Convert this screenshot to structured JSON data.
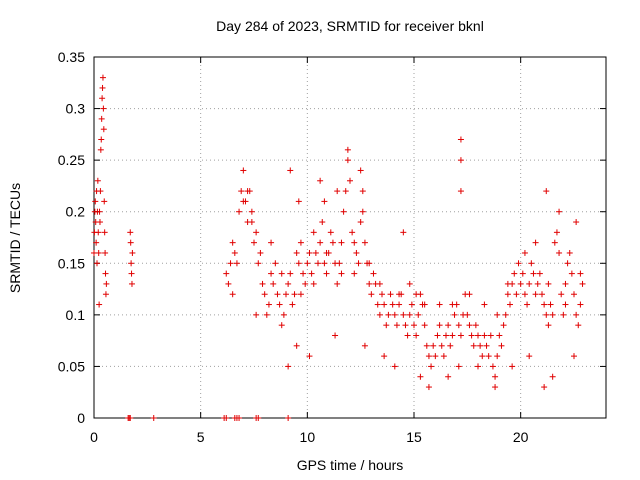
{
  "chart_data": {
    "type": "scatter",
    "title": "Day 284 of 2023, SRMTID for receiver bknl",
    "xlabel": "GPS time / hours",
    "ylabel": "SRMTID / TECUs",
    "xlim": [
      0,
      24
    ],
    "ylim": [
      0,
      0.35
    ],
    "xticks": [
      0,
      5,
      10,
      15,
      20
    ],
    "xtick_labels": [
      "0",
      "5",
      "10",
      "15",
      "20"
    ],
    "yticks": [
      0,
      0.05,
      0.1,
      0.15,
      0.2,
      0.25,
      0.3,
      0.35
    ],
    "ytick_labels": [
      "0",
      "0.05",
      "0.1",
      "0.15",
      "0.2",
      "0.25",
      "0.3",
      "0.35"
    ],
    "grid": true,
    "marker": "plus",
    "color": "#e00000",
    "series": [
      {
        "name": "SRMTID",
        "points": [
          [
            0.0,
            0.16
          ],
          [
            0.02,
            0.18
          ],
          [
            0.04,
            0.2
          ],
          [
            0.06,
            0.21
          ],
          [
            0.08,
            0.19
          ],
          [
            0.1,
            0.17
          ],
          [
            0.12,
            0.22
          ],
          [
            0.14,
            0.15
          ],
          [
            0.16,
            0.2
          ],
          [
            0.18,
            0.23
          ],
          [
            0.2,
            0.18
          ],
          [
            0.22,
            0.16
          ],
          [
            0.24,
            0.11
          ],
          [
            0.26,
            0.2
          ],
          [
            0.28,
            0.19
          ],
          [
            0.3,
            0.22
          ],
          [
            0.32,
            0.26
          ],
          [
            0.34,
            0.27
          ],
          [
            0.36,
            0.29
          ],
          [
            0.38,
            0.31
          ],
          [
            0.4,
            0.32
          ],
          [
            0.42,
            0.33
          ],
          [
            0.44,
            0.3
          ],
          [
            0.46,
            0.28
          ],
          [
            0.48,
            0.21
          ],
          [
            0.5,
            0.18
          ],
          [
            0.52,
            0.16
          ],
          [
            0.54,
            0.14
          ],
          [
            0.56,
            0.12
          ],
          [
            0.58,
            0.13
          ],
          [
            1.7,
            0.18
          ],
          [
            1.72,
            0.17
          ],
          [
            1.74,
            0.15
          ],
          [
            1.76,
            0.14
          ],
          [
            1.78,
            0.13
          ],
          [
            1.8,
            0.16
          ],
          [
            1.6,
            0.0
          ],
          [
            1.65,
            0.0
          ],
          [
            1.7,
            0.0
          ],
          [
            2.8,
            0.0
          ],
          [
            6.1,
            0.0
          ],
          [
            6.2,
            0.0
          ],
          [
            6.6,
            0.0
          ],
          [
            6.7,
            0.0
          ],
          [
            6.8,
            0.0
          ],
          [
            7.6,
            0.0
          ],
          [
            7.7,
            0.0
          ],
          [
            9.1,
            0.0
          ],
          [
            6.2,
            0.14
          ],
          [
            6.3,
            0.13
          ],
          [
            6.4,
            0.15
          ],
          [
            6.5,
            0.17
          ],
          [
            6.6,
            0.16
          ],
          [
            6.7,
            0.15
          ],
          [
            6.8,
            0.2
          ],
          [
            6.9,
            0.22
          ],
          [
            7.0,
            0.24
          ],
          [
            7.1,
            0.21
          ],
          [
            7.2,
            0.19
          ],
          [
            7.3,
            0.22
          ],
          [
            7.4,
            0.2
          ],
          [
            7.5,
            0.17
          ],
          [
            7.6,
            0.18
          ],
          [
            7.7,
            0.15
          ],
          [
            7.8,
            0.16
          ],
          [
            7.9,
            0.13
          ],
          [
            8.0,
            0.12
          ],
          [
            8.1,
            0.1
          ],
          [
            8.2,
            0.11
          ],
          [
            8.3,
            0.14
          ],
          [
            8.4,
            0.13
          ],
          [
            8.5,
            0.15
          ],
          [
            8.6,
            0.12
          ],
          [
            8.7,
            0.11
          ],
          [
            8.8,
            0.09
          ],
          [
            8.9,
            0.1
          ],
          [
            9.0,
            0.12
          ],
          [
            9.1,
            0.13
          ],
          [
            9.2,
            0.14
          ],
          [
            9.3,
            0.11
          ],
          [
            9.4,
            0.12
          ],
          [
            9.5,
            0.16
          ],
          [
            9.6,
            0.15
          ],
          [
            9.7,
            0.17
          ],
          [
            9.8,
            0.14
          ],
          [
            9.9,
            0.13
          ],
          [
            10.0,
            0.15
          ],
          [
            10.1,
            0.16
          ],
          [
            10.2,
            0.14
          ],
          [
            10.3,
            0.18
          ],
          [
            10.4,
            0.16
          ],
          [
            10.5,
            0.15
          ],
          [
            10.6,
            0.17
          ],
          [
            10.7,
            0.19
          ],
          [
            10.8,
            0.15
          ],
          [
            10.9,
            0.14
          ],
          [
            11.0,
            0.16
          ],
          [
            11.1,
            0.18
          ],
          [
            11.2,
            0.17
          ],
          [
            11.3,
            0.15
          ],
          [
            11.4,
            0.13
          ],
          [
            11.5,
            0.15
          ],
          [
            11.6,
            0.17
          ],
          [
            11.7,
            0.2
          ],
          [
            11.8,
            0.22
          ],
          [
            11.9,
            0.25
          ],
          [
            12.0,
            0.23
          ],
          [
            12.1,
            0.18
          ],
          [
            12.2,
            0.17
          ],
          [
            12.3,
            0.16
          ],
          [
            12.4,
            0.15
          ],
          [
            12.5,
            0.19
          ],
          [
            12.6,
            0.2
          ],
          [
            12.7,
            0.17
          ],
          [
            12.8,
            0.15
          ],
          [
            12.9,
            0.13
          ],
          [
            13.0,
            0.12
          ],
          [
            13.1,
            0.14
          ],
          [
            13.2,
            0.13
          ],
          [
            13.3,
            0.11
          ],
          [
            13.4,
            0.1
          ],
          [
            13.5,
            0.12
          ],
          [
            13.6,
            0.11
          ],
          [
            13.7,
            0.09
          ],
          [
            13.8,
            0.1
          ],
          [
            13.9,
            0.12
          ],
          [
            14.0,
            0.11
          ],
          [
            14.1,
            0.1
          ],
          [
            14.2,
            0.09
          ],
          [
            14.3,
            0.11
          ],
          [
            14.4,
            0.12
          ],
          [
            14.5,
            0.1
          ],
          [
            14.6,
            0.09
          ],
          [
            14.7,
            0.08
          ],
          [
            14.8,
            0.1
          ],
          [
            14.9,
            0.11
          ],
          [
            15.0,
            0.09
          ],
          [
            15.1,
            0.08
          ],
          [
            15.2,
            0.1
          ],
          [
            15.3,
            0.12
          ],
          [
            15.4,
            0.11
          ],
          [
            15.5,
            0.09
          ],
          [
            15.6,
            0.07
          ],
          [
            15.7,
            0.06
          ],
          [
            15.8,
            0.05
          ],
          [
            15.9,
            0.07
          ],
          [
            16.0,
            0.06
          ],
          [
            16.1,
            0.08
          ],
          [
            16.2,
            0.09
          ],
          [
            16.3,
            0.07
          ],
          [
            16.4,
            0.06
          ],
          [
            16.5,
            0.08
          ],
          [
            16.6,
            0.09
          ],
          [
            16.7,
            0.07
          ],
          [
            16.8,
            0.08
          ],
          [
            16.9,
            0.1
          ],
          [
            17.0,
            0.11
          ],
          [
            17.1,
            0.09
          ],
          [
            17.2,
            0.08
          ],
          [
            17.3,
            0.1
          ],
          [
            17.4,
            0.12
          ],
          [
            17.5,
            0.1
          ],
          [
            17.6,
            0.09
          ],
          [
            17.7,
            0.08
          ],
          [
            17.8,
            0.07
          ],
          [
            17.9,
            0.09
          ],
          [
            18.0,
            0.08
          ],
          [
            18.1,
            0.07
          ],
          [
            18.2,
            0.06
          ],
          [
            18.3,
            0.08
          ],
          [
            18.4,
            0.07
          ],
          [
            18.5,
            0.06
          ],
          [
            18.6,
            0.08
          ],
          [
            18.7,
            0.05
          ],
          [
            18.8,
            0.04
          ],
          [
            18.9,
            0.06
          ],
          [
            19.0,
            0.08
          ],
          [
            19.1,
            0.07
          ],
          [
            19.2,
            0.09
          ],
          [
            19.3,
            0.1
          ],
          [
            19.4,
            0.12
          ],
          [
            19.5,
            0.11
          ],
          [
            19.6,
            0.13
          ],
          [
            19.7,
            0.14
          ],
          [
            19.8,
            0.12
          ],
          [
            19.9,
            0.15
          ],
          [
            20.0,
            0.13
          ],
          [
            20.1,
            0.14
          ],
          [
            20.2,
            0.12
          ],
          [
            20.3,
            0.11
          ],
          [
            20.4,
            0.13
          ],
          [
            20.5,
            0.15
          ],
          [
            20.6,
            0.14
          ],
          [
            20.7,
            0.12
          ],
          [
            20.8,
            0.13
          ],
          [
            20.9,
            0.14
          ],
          [
            21.0,
            0.12
          ],
          [
            21.1,
            0.11
          ],
          [
            21.2,
            0.1
          ],
          [
            21.3,
            0.09
          ],
          [
            21.4,
            0.11
          ],
          [
            21.5,
            0.1
          ],
          [
            21.6,
            0.17
          ],
          [
            21.7,
            0.18
          ],
          [
            21.8,
            0.16
          ],
          [
            21.9,
            0.12
          ],
          [
            22.0,
            0.1
          ],
          [
            22.1,
            0.13
          ],
          [
            22.2,
            0.15
          ],
          [
            22.3,
            0.16
          ],
          [
            22.4,
            0.14
          ],
          [
            22.5,
            0.12
          ],
          [
            22.6,
            0.1
          ],
          [
            22.7,
            0.09
          ],
          [
            22.8,
            0.11
          ],
          [
            22.9,
            0.13
          ],
          [
            7.0,
            0.21
          ],
          [
            7.2,
            0.22
          ],
          [
            7.4,
            0.19
          ],
          [
            8.3,
            0.17
          ],
          [
            9.2,
            0.24
          ],
          [
            9.6,
            0.21
          ],
          [
            10.6,
            0.23
          ],
          [
            10.8,
            0.21
          ],
          [
            11.4,
            0.22
          ],
          [
            11.9,
            0.26
          ],
          [
            12.5,
            0.24
          ],
          [
            12.6,
            0.22
          ],
          [
            14.5,
            0.18
          ],
          [
            17.2,
            0.27
          ],
          [
            17.2,
            0.25
          ],
          [
            17.2,
            0.22
          ],
          [
            21.2,
            0.22
          ],
          [
            21.8,
            0.2
          ],
          [
            22.6,
            0.19
          ],
          [
            9.1,
            0.05
          ],
          [
            9.5,
            0.07
          ],
          [
            10.1,
            0.06
          ],
          [
            11.3,
            0.08
          ],
          [
            12.7,
            0.07
          ],
          [
            13.6,
            0.06
          ],
          [
            14.1,
            0.05
          ],
          [
            15.3,
            0.04
          ],
          [
            15.7,
            0.03
          ],
          [
            16.6,
            0.04
          ],
          [
            17.1,
            0.05
          ],
          [
            18.0,
            0.05
          ],
          [
            18.8,
            0.03
          ],
          [
            19.6,
            0.05
          ],
          [
            20.4,
            0.06
          ],
          [
            21.1,
            0.03
          ],
          [
            21.5,
            0.04
          ],
          [
            22.5,
            0.06
          ],
          [
            6.5,
            0.12
          ],
          [
            7.6,
            0.1
          ],
          [
            8.8,
            0.14
          ],
          [
            9.7,
            0.12
          ],
          [
            10.3,
            0.13
          ],
          [
            10.9,
            0.16
          ],
          [
            11.6,
            0.14
          ],
          [
            12.2,
            0.14
          ],
          [
            12.9,
            0.15
          ],
          [
            13.4,
            0.13
          ],
          [
            14.3,
            0.12
          ],
          [
            14.8,
            0.13
          ],
          [
            15.1,
            0.12
          ],
          [
            15.5,
            0.11
          ],
          [
            16.2,
            0.11
          ],
          [
            16.8,
            0.11
          ],
          [
            17.6,
            0.12
          ],
          [
            18.3,
            0.11
          ],
          [
            18.9,
            0.1
          ],
          [
            19.4,
            0.13
          ],
          [
            20.2,
            0.16
          ],
          [
            20.7,
            0.17
          ],
          [
            21.3,
            0.13
          ],
          [
            22.1,
            0.11
          ],
          [
            22.8,
            0.14
          ]
        ]
      }
    ]
  }
}
